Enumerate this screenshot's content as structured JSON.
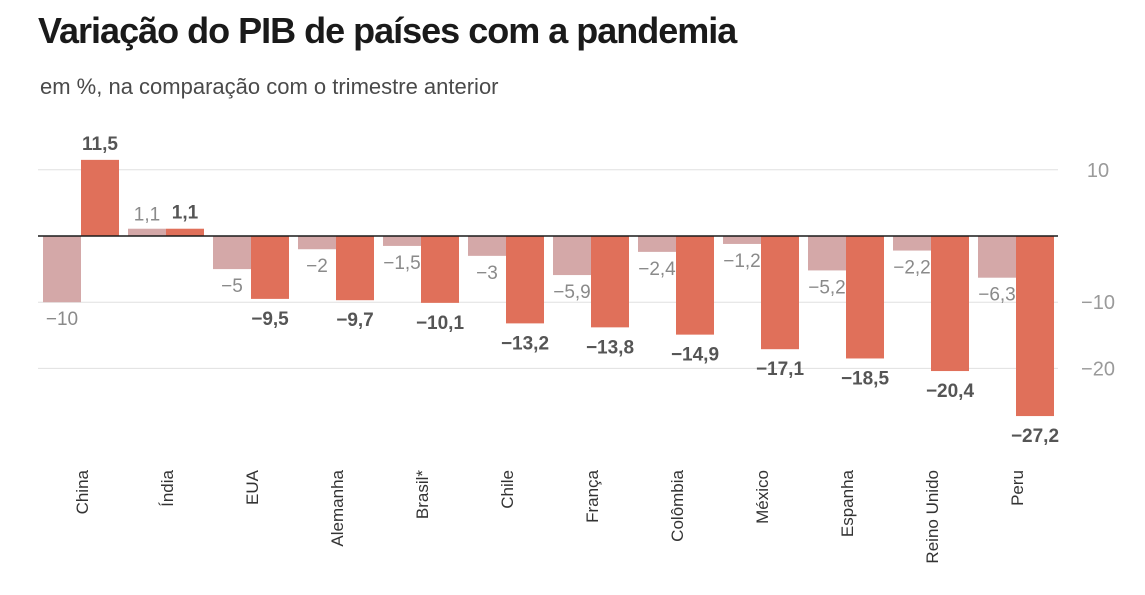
{
  "title": "Variação do PIB de países com a pandemia",
  "subtitle": "em %, na comparação com o trimestre anterior",
  "colors": {
    "previous": "#d4a8a8",
    "current": "#e0705a",
    "zero_line": "#1a1a1a",
    "grid": "#e0e0e0"
  },
  "chart_data": {
    "type": "bar",
    "categories": [
      "China",
      "Índia",
      "EUA",
      "Alemanha",
      "Brasil*",
      "Chile",
      "França",
      "Colômbia",
      "México",
      "Espanha",
      "Reino Unido",
      "Peru"
    ],
    "series": [
      {
        "values": [
          -10,
          1.1,
          -5,
          -2,
          -1.5,
          -3,
          -5.9,
          -2.4,
          -1.2,
          -5.2,
          -2.2,
          -6.3
        ],
        "labels": [
          "−10",
          "1,1",
          "−5",
          "−2",
          "−1,5",
          "−3",
          "−5,9",
          "−2,4",
          "−1,2",
          "−5,2",
          "−2,2",
          "−6,3"
        ]
      },
      {
        "values": [
          11.5,
          1.1,
          -9.5,
          -9.7,
          -10.1,
          -13.2,
          -13.8,
          -14.9,
          -17.1,
          -18.5,
          -20.4,
          -27.2
        ],
        "labels": [
          "11,5",
          "1,1",
          "−9,5",
          "−9,7",
          "−10,1",
          "−13,2",
          "−13,8",
          "−14,9",
          "−17,1",
          "−18,5",
          "−20,4",
          "−27,2"
        ]
      }
    ],
    "yticks": [
      10,
      -10,
      -20
    ],
    "ytick_labels": [
      "10",
      "−10",
      "−20"
    ],
    "ylim": [
      -28,
      12
    ],
    "grid": true,
    "axis_position": "right"
  }
}
